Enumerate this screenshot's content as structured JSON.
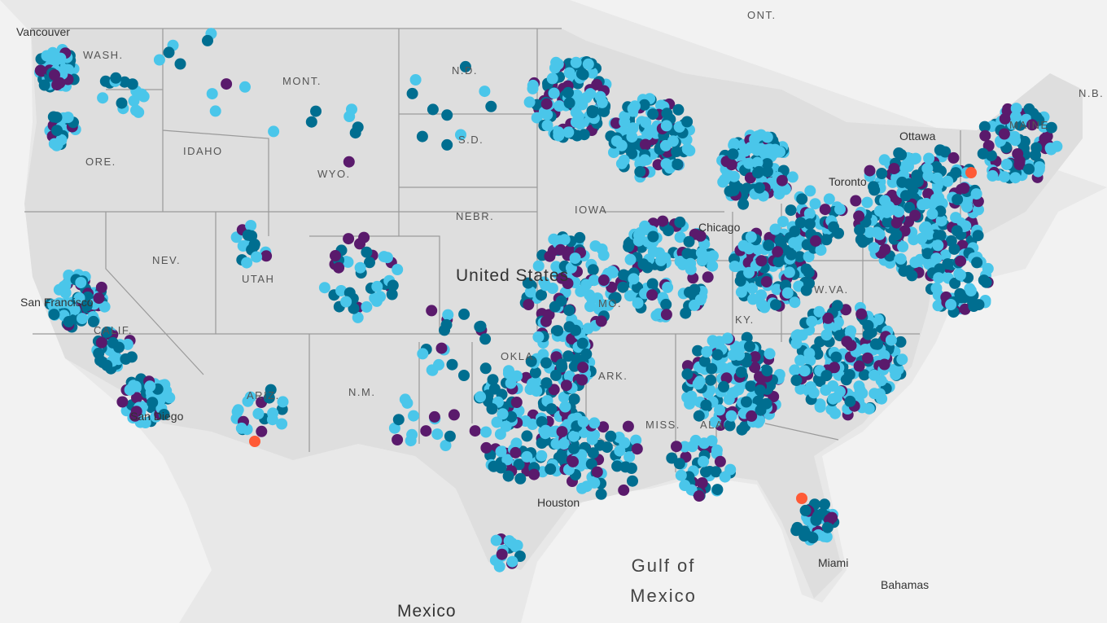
{
  "map": {
    "country_label": "United States",
    "labels": [
      "Vancouver",
      "WASH.",
      "MONT.",
      "N.D.",
      "ONT.",
      "IDAHO",
      "ORE.",
      "WYO.",
      "S.D.",
      "NEBR.",
      "NEV.",
      "UTAH",
      "CALIF.",
      "San Francisco",
      "San Diego",
      "IOWA",
      "MO.",
      "OKLA.",
      "ARK.",
      "ARIZ.",
      "N.M.",
      "MISS.",
      "ALA.",
      "KY.",
      "W.VA.",
      "Houston",
      "Miami",
      "Toronto",
      "Ottawa",
      "Chicago",
      "MAINE",
      "N.B.",
      "Mexico",
      "Bahamas"
    ],
    "water_label": [
      "Gulf of",
      "Mexico"
    ]
  }
}
